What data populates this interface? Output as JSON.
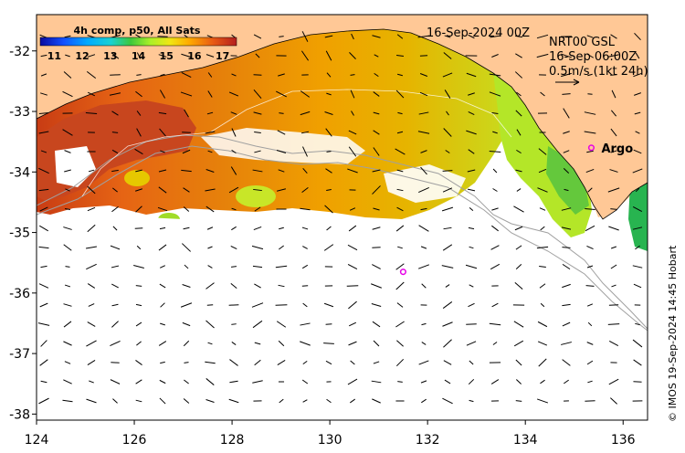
{
  "colorbar": {
    "title": "4h comp, p50, All Sats",
    "ticks": [
      "11",
      "12",
      "13",
      "14",
      "15",
      "16",
      "17"
    ],
    "min": 10.5,
    "max": 17.5,
    "colors": [
      "#0a0aa0",
      "#1450ff",
      "#00aaff",
      "#19d2d2",
      "#3cc83c",
      "#aaf028",
      "#f0e614",
      "#ffaa00",
      "#e85a14",
      "#b41e1e"
    ]
  },
  "header": {
    "date": "16-Sep-2024 00Z",
    "product": "NRT00 GSL",
    "current_time": "16-Sep 06:00Z",
    "scale_label": "0.5m/s (1kt 24h)"
  },
  "axes": {
    "lon_ticks": [
      "124",
      "126",
      "128",
      "130",
      "132",
      "134",
      "136"
    ],
    "lat_ticks": [
      "-32",
      "-33",
      "-34",
      "-35",
      "-36",
      "-37",
      "-38"
    ],
    "lon_range": [
      124,
      136.5
    ],
    "lat_range": [
      -31.4,
      -38.1
    ]
  },
  "markers": [
    {
      "label": "Argo",
      "lon": 135.35,
      "lat": -33.6
    },
    {
      "label": "",
      "lon": 131.5,
      "lat": -35.65
    }
  ],
  "credit": "© IMOS 19-Sep-2024 14:45 Hobart",
  "colors": {
    "land": "#ffc896",
    "marker": "#e600e6",
    "vector": "#000000"
  }
}
